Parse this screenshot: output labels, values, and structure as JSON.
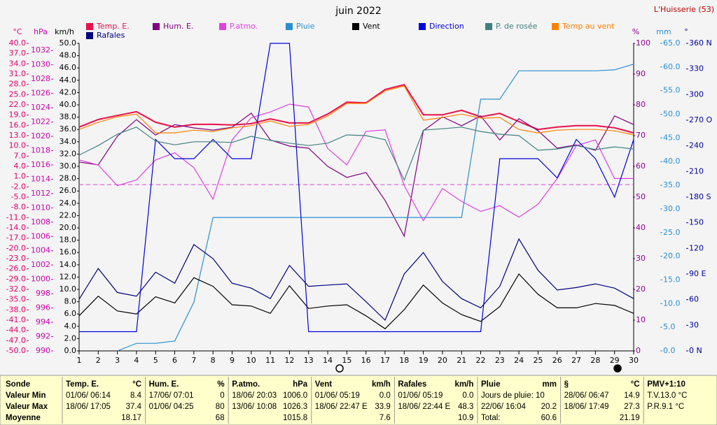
{
  "chart_data": {
    "type": "line",
    "title": "juin 2022",
    "station": "L'Huisserie (53)",
    "x": [
      1,
      2,
      3,
      4,
      5,
      6,
      7,
      8,
      9,
      10,
      11,
      12,
      13,
      14,
      15,
      16,
      17,
      18,
      19,
      20,
      21,
      22,
      23,
      24,
      25,
      26,
      27,
      28,
      29,
      30
    ],
    "xlim": [
      1,
      30
    ],
    "xticks": [
      1,
      2,
      3,
      4,
      5,
      6,
      7,
      8,
      9,
      10,
      11,
      12,
      13,
      14,
      15,
      16,
      17,
      18,
      19,
      20,
      21,
      22,
      23,
      24,
      25,
      26,
      27,
      28,
      29,
      30
    ],
    "axes": [
      {
        "label": "°C",
        "color": "#e0006a",
        "lim": [
          -50,
          40
        ],
        "ticks": [
          {
            "value": 40,
            "label": "40.0"
          },
          {
            "value": 37,
            "label": "37.0"
          },
          {
            "value": 34,
            "label": "34.0"
          },
          {
            "value": 31,
            "label": "31.0"
          },
          {
            "value": 28,
            "label": "28.0"
          },
          {
            "value": 25,
            "label": "25.0"
          },
          {
            "value": 22,
            "label": "22.0"
          },
          {
            "value": 19,
            "label": "19.0"
          },
          {
            "value": 16,
            "label": "16.0"
          },
          {
            "value": 13,
            "label": "13.0"
          },
          {
            "value": 10,
            "label": "10.0"
          },
          {
            "value": 7,
            "label": "7.0"
          },
          {
            "value": 4,
            "label": "4.0"
          },
          {
            "value": 1,
            "label": "1.0"
          },
          {
            "value": -2,
            "label": "-2.0"
          },
          {
            "value": -5,
            "label": "-5.0"
          },
          {
            "value": -8,
            "label": "-8.0"
          },
          {
            "value": -11,
            "label": "-11.0"
          },
          {
            "value": -14,
            "label": "-14.0"
          },
          {
            "value": -17,
            "label": "-17.0"
          },
          {
            "value": -20,
            "label": "-20.0"
          },
          {
            "value": -23,
            "label": "-23.0"
          },
          {
            "value": -26,
            "label": "-26.0"
          },
          {
            "value": -29,
            "label": "-29.0"
          },
          {
            "value": -32,
            "label": "-32.0"
          },
          {
            "value": -35,
            "label": "-35.0"
          },
          {
            "value": -38,
            "label": "-38.0"
          },
          {
            "value": -41,
            "label": "-41.0"
          },
          {
            "value": -44,
            "label": "-44.0"
          },
          {
            "value": -47,
            "label": "-47.0"
          },
          {
            "value": -50,
            "label": "-50.0"
          }
        ]
      },
      {
        "label": "hPa",
        "color": "#d000b0",
        "lim": [
          990,
          1033
        ],
        "ticks": [
          1032,
          1030,
          1028,
          1026,
          1024,
          1022,
          1020,
          1018,
          1016,
          1014,
          1012,
          1010,
          1008,
          1006,
          1004,
          1002,
          1000,
          998,
          996,
          994,
          992,
          990
        ]
      },
      {
        "label": "km/h",
        "color": "#000000",
        "lim": [
          0,
          50
        ],
        "ticks": [
          {
            "value": 50,
            "label": "50.0"
          },
          {
            "value": 48,
            "label": "48.0"
          },
          {
            "value": 46,
            "label": "46.0"
          },
          {
            "value": 44,
            "label": "44.0"
          },
          {
            "value": 42,
            "label": "42.0"
          },
          {
            "value": 40,
            "label": "40.0"
          },
          {
            "value": 38,
            "label": "38.0"
          },
          {
            "value": 36,
            "label": "36.0"
          },
          {
            "value": 34,
            "label": "34.0"
          },
          {
            "value": 32,
            "label": "32.0"
          },
          {
            "value": 30,
            "label": "30.0"
          },
          {
            "value": 28,
            "label": "28.0"
          },
          {
            "value": 26,
            "label": "26.0"
          },
          {
            "value": 24,
            "label": "24.0"
          },
          {
            "value": 22,
            "label": "22.0"
          },
          {
            "value": 20,
            "label": "20.0"
          },
          {
            "value": 18,
            "label": "18.0"
          },
          {
            "value": 16,
            "label": "16.0"
          },
          {
            "value": 14,
            "label": "14.0"
          },
          {
            "value": 12,
            "label": "12.0"
          },
          {
            "value": 10,
            "label": "10.0"
          },
          {
            "value": 8,
            "label": "8.0"
          },
          {
            "value": 6,
            "label": "6.0"
          },
          {
            "value": 4,
            "label": "4.0"
          },
          {
            "value": 2,
            "label": "2.0"
          },
          {
            "value": 0,
            "label": "0.0"
          }
        ]
      },
      {
        "label": "%",
        "color": "#900090",
        "lim": [
          0,
          100
        ],
        "ticks": [
          100,
          90,
          80,
          70,
          60,
          50,
          40,
          30,
          20,
          10,
          0
        ]
      },
      {
        "label": "mm",
        "color": "#2a8fd0",
        "lim": [
          0,
          65
        ],
        "ticks": [
          {
            "value": 65,
            "label": "65.0"
          },
          {
            "value": 60,
            "label": "60.0"
          },
          {
            "value": 55,
            "label": "55.0"
          },
          {
            "value": 50,
            "label": "50.0"
          },
          {
            "value": 45,
            "label": "45.0"
          },
          {
            "value": 40,
            "label": "40.0"
          },
          {
            "value": 35,
            "label": "35.0"
          },
          {
            "value": 30,
            "label": "30.0"
          },
          {
            "value": 25,
            "label": "25.0"
          },
          {
            "value": 20,
            "label": "20.0"
          },
          {
            "value": 15,
            "label": "15.0"
          },
          {
            "value": 10,
            "label": "10.0"
          },
          {
            "value": 5,
            "label": "5.0"
          },
          {
            "value": 0,
            "label": "0.0"
          }
        ]
      },
      {
        "label": "°",
        "color": "#0000a0",
        "lim": [
          0,
          360
        ],
        "ticks": [
          {
            "value": 360,
            "label": "360 N"
          },
          330,
          300,
          {
            "value": 270,
            "label": "270 O"
          },
          240,
          210,
          {
            "value": 180,
            "label": "180 S"
          },
          150,
          120,
          {
            "value": 90,
            "label": "90 E"
          },
          60,
          30,
          {
            "value": 0,
            "label": "0 N"
          }
        ]
      }
    ],
    "reference": {
      "axis": 1,
      "value": 1013.25,
      "color": "#e040e0"
    },
    "series": [
      {
        "name": "Temp. E.",
        "color": "#e8104a",
        "axis": 0,
        "width": 2,
        "values": [
          15.5,
          17.7,
          18.9,
          20.0,
          16.9,
          15.5,
          16.3,
          16.3,
          16.1,
          16.5,
          17.9,
          16.7,
          16.7,
          19.3,
          22.8,
          22.6,
          26.5,
          27.9,
          19.1,
          19.1,
          20.4,
          18.5,
          19.5,
          17.1,
          14.8,
          15.5,
          15.9,
          15.9,
          15.3,
          13.8
        ]
      },
      {
        "name": "Hum. E.",
        "color": "#800080",
        "axis": 3,
        "values": [
          61.4,
          60.5,
          69.8,
          75.2,
          70.2,
          73.6,
          72.5,
          71.8,
          72.7,
          77.3,
          68.6,
          66.6,
          65.9,
          60.0,
          56.4,
          58.0,
          48.9,
          37.3,
          71.6,
          76.1,
          73.2,
          76.4,
          68.6,
          75.5,
          71.6,
          65.9,
          67.0,
          65.2,
          76.4,
          73.6
        ]
      },
      {
        "name": "P.atmo.",
        "color": "#e040e0",
        "axis": 1,
        "values": [
          1016.7,
          1016.0,
          1013.1,
          1013.9,
          1016.7,
          1017.7,
          1015.6,
          1011.2,
          1019.5,
          1022.6,
          1023.4,
          1024.5,
          1024.1,
          1018.3,
          1016.0,
          1020.7,
          1020.9,
          1013.1,
          1008.2,
          1012.7,
          1010.9,
          1009.5,
          1010.3,
          1008.7,
          1010.5,
          1014.1,
          1018.7,
          1019.5,
          1014.1,
          1014.1
        ]
      },
      {
        "name": "Pluie",
        "color": "#2a8fd0",
        "axis": 4,
        "values": [
          null,
          null,
          0,
          1.6,
          1.6,
          2.1,
          10.3,
          28.2,
          28.2,
          28.2,
          28.2,
          28.2,
          28.2,
          28.2,
          28.2,
          28.2,
          28.2,
          28.2,
          28.2,
          28.2,
          28.2,
          53.2,
          53.2,
          59.2,
          59.2,
          59.2,
          59.2,
          59.2,
          59.4,
          60.6
        ]
      },
      {
        "name": "Vent",
        "color": "#000000",
        "axis": 2,
        "values": [
          5.7,
          8.9,
          6.5,
          6.0,
          8.8,
          7.8,
          11.9,
          10.5,
          7.5,
          7.3,
          6.1,
          10.6,
          6.9,
          7.3,
          7.5,
          5.7,
          3.6,
          6.7,
          10.7,
          7.8,
          5.9,
          4.8,
          7.2,
          12.5,
          9.2,
          7.0,
          7.0,
          7.7,
          7.4,
          6.1
        ]
      },
      {
        "name": "Direction",
        "color": "#0000e0",
        "axis": 5,
        "values": [
          22.5,
          22.5,
          22.5,
          22.5,
          247.5,
          225,
          225,
          247.5,
          225,
          225,
          360,
          360,
          22.5,
          22.5,
          22.5,
          22.5,
          22.5,
          22.5,
          22.5,
          22.5,
          22.5,
          22.5,
          225,
          225,
          225,
          202.5,
          247.5,
          225,
          180,
          247.5
        ]
      },
      {
        "name": "P. de rosée",
        "color": "#408080",
        "axis": 0,
        "values": [
          7.3,
          10.1,
          13.4,
          15.5,
          11.4,
          10.3,
          11.2,
          11.2,
          11.0,
          12.8,
          11.6,
          10.8,
          10.1,
          10.8,
          13.2,
          13.0,
          11.8,
          0.0,
          14.6,
          15.0,
          15.5,
          14.2,
          13.4,
          13.0,
          8.7,
          9.1,
          10.1,
          8.9,
          9.7,
          9.1
        ]
      },
      {
        "name": "Temp au vent",
        "color": "#ff8000",
        "axis": 0,
        "values": [
          14.8,
          16.9,
          18.5,
          19.3,
          13.8,
          13.8,
          14.6,
          14.2,
          15.3,
          15.9,
          17.3,
          15.7,
          16.3,
          18.7,
          22.4,
          22.4,
          26.1,
          27.5,
          17.5,
          18.3,
          19.3,
          18.1,
          18.3,
          14.8,
          13.8,
          14.6,
          14.8,
          14.8,
          14.4,
          13.2
        ]
      },
      {
        "name": "Rafales",
        "color": "#000080",
        "axis": 2,
        "values": [
          8.4,
          13.4,
          9.5,
          8.9,
          12.8,
          11.0,
          17.3,
          15.0,
          11.0,
          10.2,
          8.5,
          13.9,
          10.5,
          10.7,
          10.9,
          8.0,
          5.0,
          12.5,
          16.0,
          11.3,
          8.5,
          7.0,
          10.5,
          18.2,
          13.1,
          9.9,
          10.3,
          10.9,
          10.2,
          8.5
        ]
      }
    ]
  },
  "summary": {
    "labels": [
      "Sonde",
      "Valeur Min",
      "Valeur Max",
      "Moyenne"
    ],
    "columns": [
      {
        "name": "Temp. E.",
        "unit": "°C",
        "rows": [
          [
            "01/06/ 06:14",
            "8.4"
          ],
          [
            "18/06/ 17:05",
            "37.4"
          ],
          [
            "18.17"
          ]
        ]
      },
      {
        "name": "Hum. E.",
        "unit": "%",
        "rows": [
          [
            "17/06/ 07:01",
            "0"
          ],
          [
            "01/06/ 04:25",
            "80"
          ],
          [
            "68"
          ]
        ]
      },
      {
        "name": "P.atmo.",
        "unit": "hPa",
        "rows": [
          [
            "18/06/ 20:03",
            "1006.0"
          ],
          [
            "13/06/ 10:08",
            "1026.3"
          ],
          [
            "1015.8"
          ]
        ]
      },
      {
        "name": "Vent",
        "unit": "km/h",
        "rows": [
          [
            "01/06/ 05:19",
            "0.0"
          ],
          [
            "18/06/ 22:47 E",
            "33.9"
          ],
          [
            "7.6"
          ]
        ]
      },
      {
        "name": "Rafales",
        "unit": "km/h",
        "rows": [
          [
            "01/06/ 05:19",
            "0.0"
          ],
          [
            "18/06/ 22:44 E",
            "48.3"
          ],
          [
            "10.9"
          ]
        ]
      },
      {
        "name": "Pluie",
        "unit": "mm",
        "rows": [
          [
            "Jours de pluie: 10"
          ],
          [
            "22/06/ 16:04",
            "20.2"
          ],
          [
            "Total:",
            "60.6"
          ]
        ]
      },
      {
        "name": "§",
        "unit": "°C",
        "rows": [
          [
            "28/06/ 06:47",
            "14.9"
          ],
          [
            "18/06/ 17:49",
            "27.3"
          ],
          [
            "21.19"
          ]
        ]
      },
      {
        "name": "PMV+1:10",
        "rows": [
          [
            "T.V.13.0 °C"
          ],
          [
            "P.R.9.1 °C"
          ]
        ]
      }
    ]
  }
}
